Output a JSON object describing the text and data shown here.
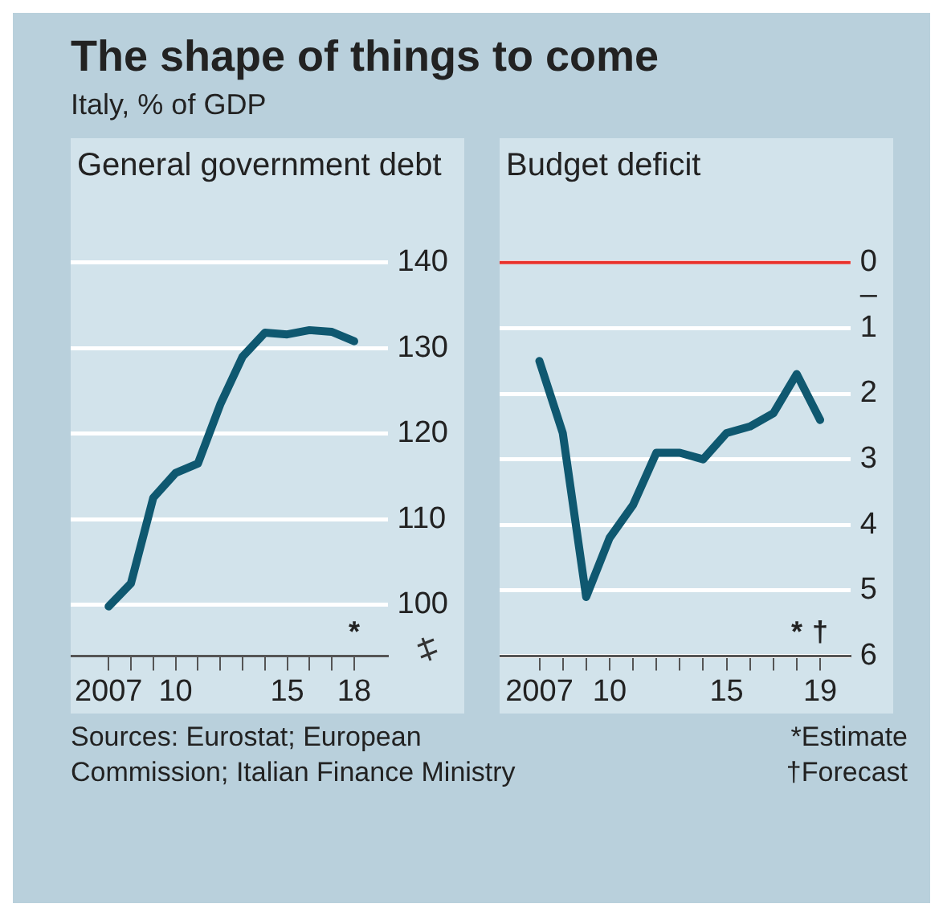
{
  "chart_data": [
    {
      "type": "line",
      "title": "The shape of things to come",
      "subtitle": "Italy, % of GDP",
      "ylabel": "General government debt",
      "x": [
        2007,
        2008,
        2009,
        2010,
        2011,
        2012,
        2013,
        2014,
        2015,
        2016,
        2017,
        2018
      ],
      "series": [
        {
          "color": "#0f5870",
          "values": [
            99.8,
            102.5,
            112.5,
            115.4,
            116.5,
            123.4,
            129.0,
            131.8,
            131.6,
            132.1,
            131.9,
            130.8
          ]
        }
      ],
      "xlim": [
        2005.3,
        2019.5
      ],
      "xticks": [
        {
          "value": 2007,
          "label": "2007"
        },
        {
          "value": 2008,
          "label": null
        },
        {
          "value": 2009,
          "label": null
        },
        {
          "value": 2010,
          "label": "10"
        },
        {
          "value": 2011,
          "label": null
        },
        {
          "value": 2012,
          "label": null
        },
        {
          "value": 2013,
          "label": null
        },
        {
          "value": 2014,
          "label": null
        },
        {
          "value": 2015,
          "label": "15"
        },
        {
          "value": 2016,
          "label": null
        },
        {
          "value": 2017,
          "label": null
        },
        {
          "value": 2018,
          "label": "18"
        }
      ],
      "ylim": [
        94,
        140
      ],
      "yticks": [
        100,
        110,
        120,
        130,
        140
      ],
      "grid": "y",
      "legend": false,
      "marker": "none",
      "line_style": "solid",
      "annotations": [
        "*",
        "Sources: Eurostat; European Commission; Italian Finance Ministry"
      ]
    },
    {
      "type": "line",
      "ylabel": "Budget deficit",
      "x": [
        2007,
        2008,
        2009,
        2010,
        2011,
        2012,
        2013,
        2014,
        2015,
        2016,
        2017,
        2018,
        2019
      ],
      "series": [
        {
          "color": "#0f5870",
          "values": [
            1.5,
            2.6,
            5.1,
            4.2,
            3.7,
            2.9,
            2.9,
            3.0,
            2.6,
            2.5,
            2.3,
            1.7,
            2.4
          ]
        }
      ],
      "xlim": [
        2005.3,
        2020.3
      ],
      "xticks": [
        {
          "value": 2007,
          "label": "2007"
        },
        {
          "value": 2008,
          "label": null
        },
        {
          "value": 2009,
          "label": null
        },
        {
          "value": 2010,
          "label": "10"
        },
        {
          "value": 2011,
          "label": null
        },
        {
          "value": 2012,
          "label": null
        },
        {
          "value": 2013,
          "label": null
        },
        {
          "value": 2014,
          "label": null
        },
        {
          "value": 2015,
          "label": "15"
        },
        {
          "value": 2016,
          "label": null
        },
        {
          "value": 2017,
          "label": null
        },
        {
          "value": 2018,
          "label": null
        },
        {
          "value": 2019,
          "label": "19"
        }
      ],
      "ylim": [
        6,
        0
      ],
      "yticks": [
        0,
        {
          "value": 0.5,
          "label": "–"
        },
        1,
        2,
        3,
        4,
        5,
        6
      ],
      "grid": "y",
      "legend": false,
      "marker": "none",
      "line_style": "solid",
      "ref_lines": [
        {
          "axis": "y",
          "value": 0,
          "color": "#e8322c"
        }
      ],
      "annotations": [
        "*",
        "†",
        "*Estimate",
        "†Forecast"
      ]
    }
  ]
}
